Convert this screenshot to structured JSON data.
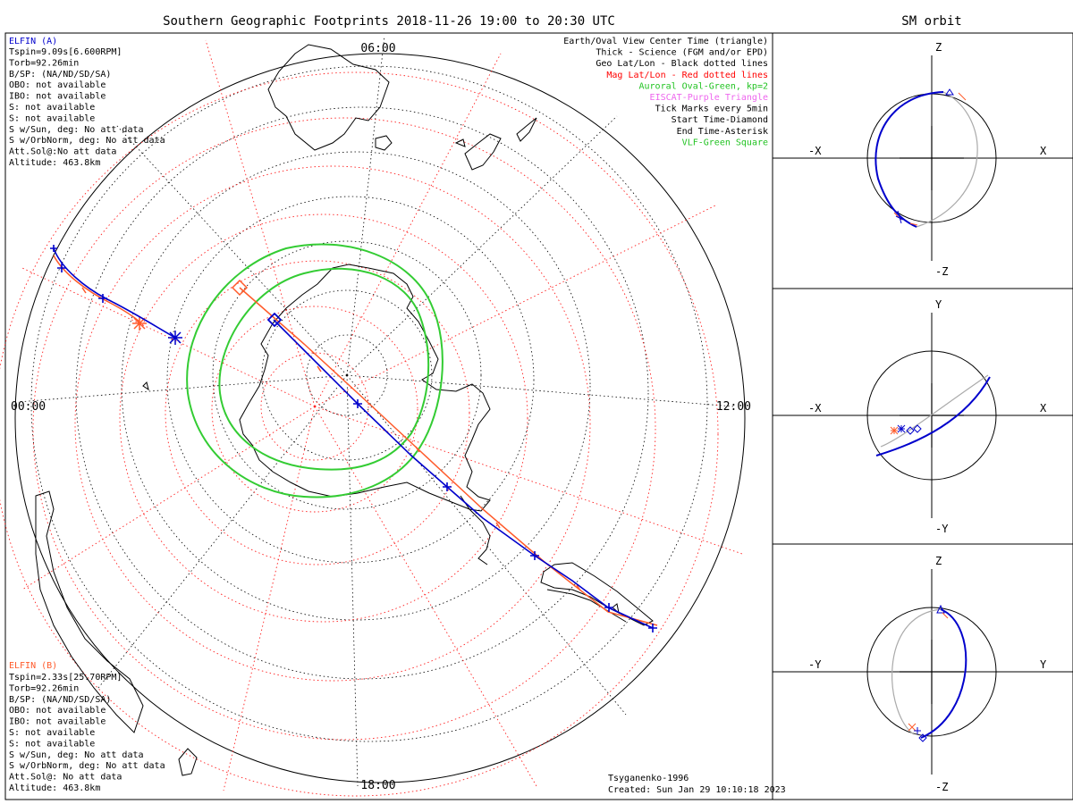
{
  "main_title": "Southern Geographic Footprints 2018-11-26 19:00 to 20:30 UTC",
  "orbit_title": "SM orbit",
  "elfin_a": {
    "name": "ELFIN (A)",
    "color": "#0000cc",
    "lines": [
      "Tspin=9.09s[6.600RPM]",
      "Torb=92.26min",
      "B/SP: (NA/ND/SD/SA)",
      "OBO: not available",
      "IBO: not available",
      "S: not available",
      "S: not available",
      "S w/Sun, deg: No att data",
      "S w/OrbNorm, deg: No att data",
      "Att.Sol@:No att data",
      "Altitude: 463.8km"
    ]
  },
  "elfin_b": {
    "name": "ELFIN (B)",
    "color": "#ff5a2a",
    "lines": [
      "Tspin=2.33s[25.70RPM]",
      "Torb=92.26min",
      "B/SP: (NA/ND/SD/SA)",
      "OBO: not available",
      "IBO: not available",
      "S: not available",
      "S: not available",
      "S w/Sun, deg: No att data",
      "S w/OrbNorm, deg: No att data",
      "Att.Sol@: No att data",
      "Altitude: 463.8km"
    ]
  },
  "legend": [
    {
      "text": "Earth/Oval View Center Time (triangle)",
      "color": "#000000"
    },
    {
      "text": "Thick - Science (FGM and/or EPD)",
      "color": "#000000"
    },
    {
      "text": "Geo Lat/Lon - Black dotted lines",
      "color": "#000000"
    },
    {
      "text": "Mag Lat/Lon - Red dotted lines",
      "color": "#ff0000"
    },
    {
      "text": "Auroral Oval-Green, kp=2",
      "color": "#22c322"
    },
    {
      "text": "EISCAT-Purple Triangle",
      "color": "#ee66ee"
    },
    {
      "text": "Tick Marks every 5min",
      "color": "#000000"
    },
    {
      "text": "Start Time-Diamond",
      "color": "#000000"
    },
    {
      "text": "End Time-Asterisk",
      "color": "#000000"
    },
    {
      "text": "VLF-Green Square",
      "color": "#22c322"
    }
  ],
  "clock_labels": {
    "top": "06:00",
    "left": "00:00",
    "right": "12:00",
    "bottom": "18:00"
  },
  "footer": {
    "model": "Tsyganenko-1996",
    "created": "Created: Sun Jan 29 10:10:18 2023"
  },
  "orbit_panels": [
    {
      "top": "Z",
      "bottom": "-Z",
      "left": "-X",
      "right": "X"
    },
    {
      "top": "Y",
      "bottom": "-Y",
      "left": "-X",
      "right": "X"
    },
    {
      "top": "Z",
      "bottom": "-Z",
      "left": "-Y",
      "right": "Y"
    }
  ],
  "colors": {
    "elfin_a": "#0000cc",
    "elfin_b": "#ff5a2a",
    "oval": "#33cc33",
    "mag_grid": "#ff2020",
    "geo_grid": "#000000",
    "orbit_gray": "#aaaaaa"
  }
}
